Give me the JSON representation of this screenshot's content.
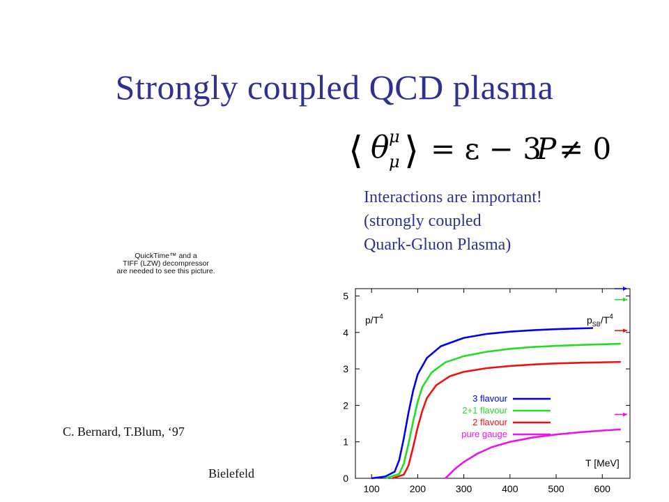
{
  "slide": {
    "title": "Strongly coupled QCD plasma",
    "note_lines": [
      "Interactions are important!",
      "(strongly coupled",
      "Quark-Gluon Plasma)"
    ],
    "quicktime_lines": [
      "QuickTime™ and a",
      "TIFF (LZW) decompressor",
      "are needed to see this picture."
    ],
    "citation": "C. Bernard, T.Blum, ‘97",
    "source": "Bielefeld",
    "formula": {
      "theta": "θ",
      "mu": "μ",
      "rhs_eq": "= ε − 3",
      "rhs_P": "P",
      "rhs_ne": "≠ 0"
    },
    "colors": {
      "title": "#2e3192",
      "text": "#111111"
    }
  },
  "chart_data": {
    "type": "line",
    "ylabel": "p/T",
    "ylabel_sup": "4",
    "xlabel": "T [MeV]",
    "sb_label": "p",
    "sb_label_sub": "SB",
    "sb_label_tail": "/T",
    "sb_label_sup": "4",
    "xlim": [
      65,
      660
    ],
    "ylim": [
      0,
      5.2
    ],
    "x_ticks": [
      100,
      200,
      300,
      400,
      500,
      600
    ],
    "y_ticks": [
      0,
      1,
      2,
      3,
      4,
      5
    ],
    "legend_position": "lower-right",
    "series": [
      {
        "name": "3 flavour",
        "color": "#0000ee",
        "sb": 5.2,
        "x": [
          100,
          130,
          150,
          160,
          170,
          180,
          190,
          200,
          220,
          250,
          300,
          350,
          400,
          450,
          500,
          580
        ],
        "y": [
          0,
          0.05,
          0.18,
          0.5,
          1.1,
          1.8,
          2.4,
          2.85,
          3.3,
          3.62,
          3.85,
          3.96,
          4.02,
          4.06,
          4.09,
          4.12
        ]
      },
      {
        "name": "2+1 flavour",
        "color": "#22dd22",
        "sb": 4.9,
        "x": [
          130,
          160,
          170,
          180,
          190,
          200,
          210,
          230,
          260,
          300,
          350,
          400,
          450,
          500,
          560,
          640
        ],
        "y": [
          0,
          0.12,
          0.4,
          0.95,
          1.55,
          2.1,
          2.5,
          2.9,
          3.18,
          3.35,
          3.47,
          3.55,
          3.6,
          3.63,
          3.66,
          3.69
        ]
      },
      {
        "name": "2 flavour",
        "color": "#ee1111",
        "sb": 4.05,
        "x": [
          145,
          170,
          180,
          190,
          200,
          210,
          220,
          240,
          270,
          300,
          350,
          400,
          450,
          500,
          560,
          640
        ],
        "y": [
          0,
          0.1,
          0.35,
          0.85,
          1.4,
          1.85,
          2.2,
          2.55,
          2.8,
          2.92,
          3.02,
          3.08,
          3.12,
          3.15,
          3.17,
          3.19
        ]
      },
      {
        "name": "pure gauge",
        "color": "#ee11ee",
        "sb": 1.75,
        "x": [
          260,
          270,
          280,
          300,
          330,
          360,
          400,
          450,
          500,
          550,
          600,
          640
        ],
        "y": [
          0,
          0.12,
          0.25,
          0.45,
          0.68,
          0.85,
          1.0,
          1.12,
          1.2,
          1.26,
          1.31,
          1.34
        ]
      }
    ]
  }
}
